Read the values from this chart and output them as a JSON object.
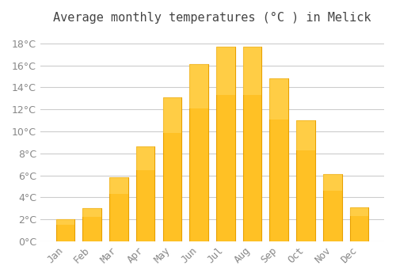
{
  "title": "Average monthly temperatures (°C ) in Melick",
  "months": [
    "Jan",
    "Feb",
    "Mar",
    "Apr",
    "May",
    "Jun",
    "Jul",
    "Aug",
    "Sep",
    "Oct",
    "Nov",
    "Dec"
  ],
  "values": [
    2.0,
    3.0,
    5.8,
    8.6,
    13.1,
    16.1,
    17.7,
    17.7,
    14.8,
    11.0,
    6.1,
    3.1
  ],
  "bar_color": "#FFC125",
  "bar_edge_color": "#E8A000",
  "background_color": "#FFFFFF",
  "grid_color": "#CCCCCC",
  "tick_label_color": "#888888",
  "title_color": "#444444",
  "ylim": [
    0,
    19
  ],
  "yticks": [
    0,
    2,
    4,
    6,
    8,
    10,
    12,
    14,
    16,
    18
  ],
  "title_fontsize": 11,
  "tick_fontsize": 9
}
